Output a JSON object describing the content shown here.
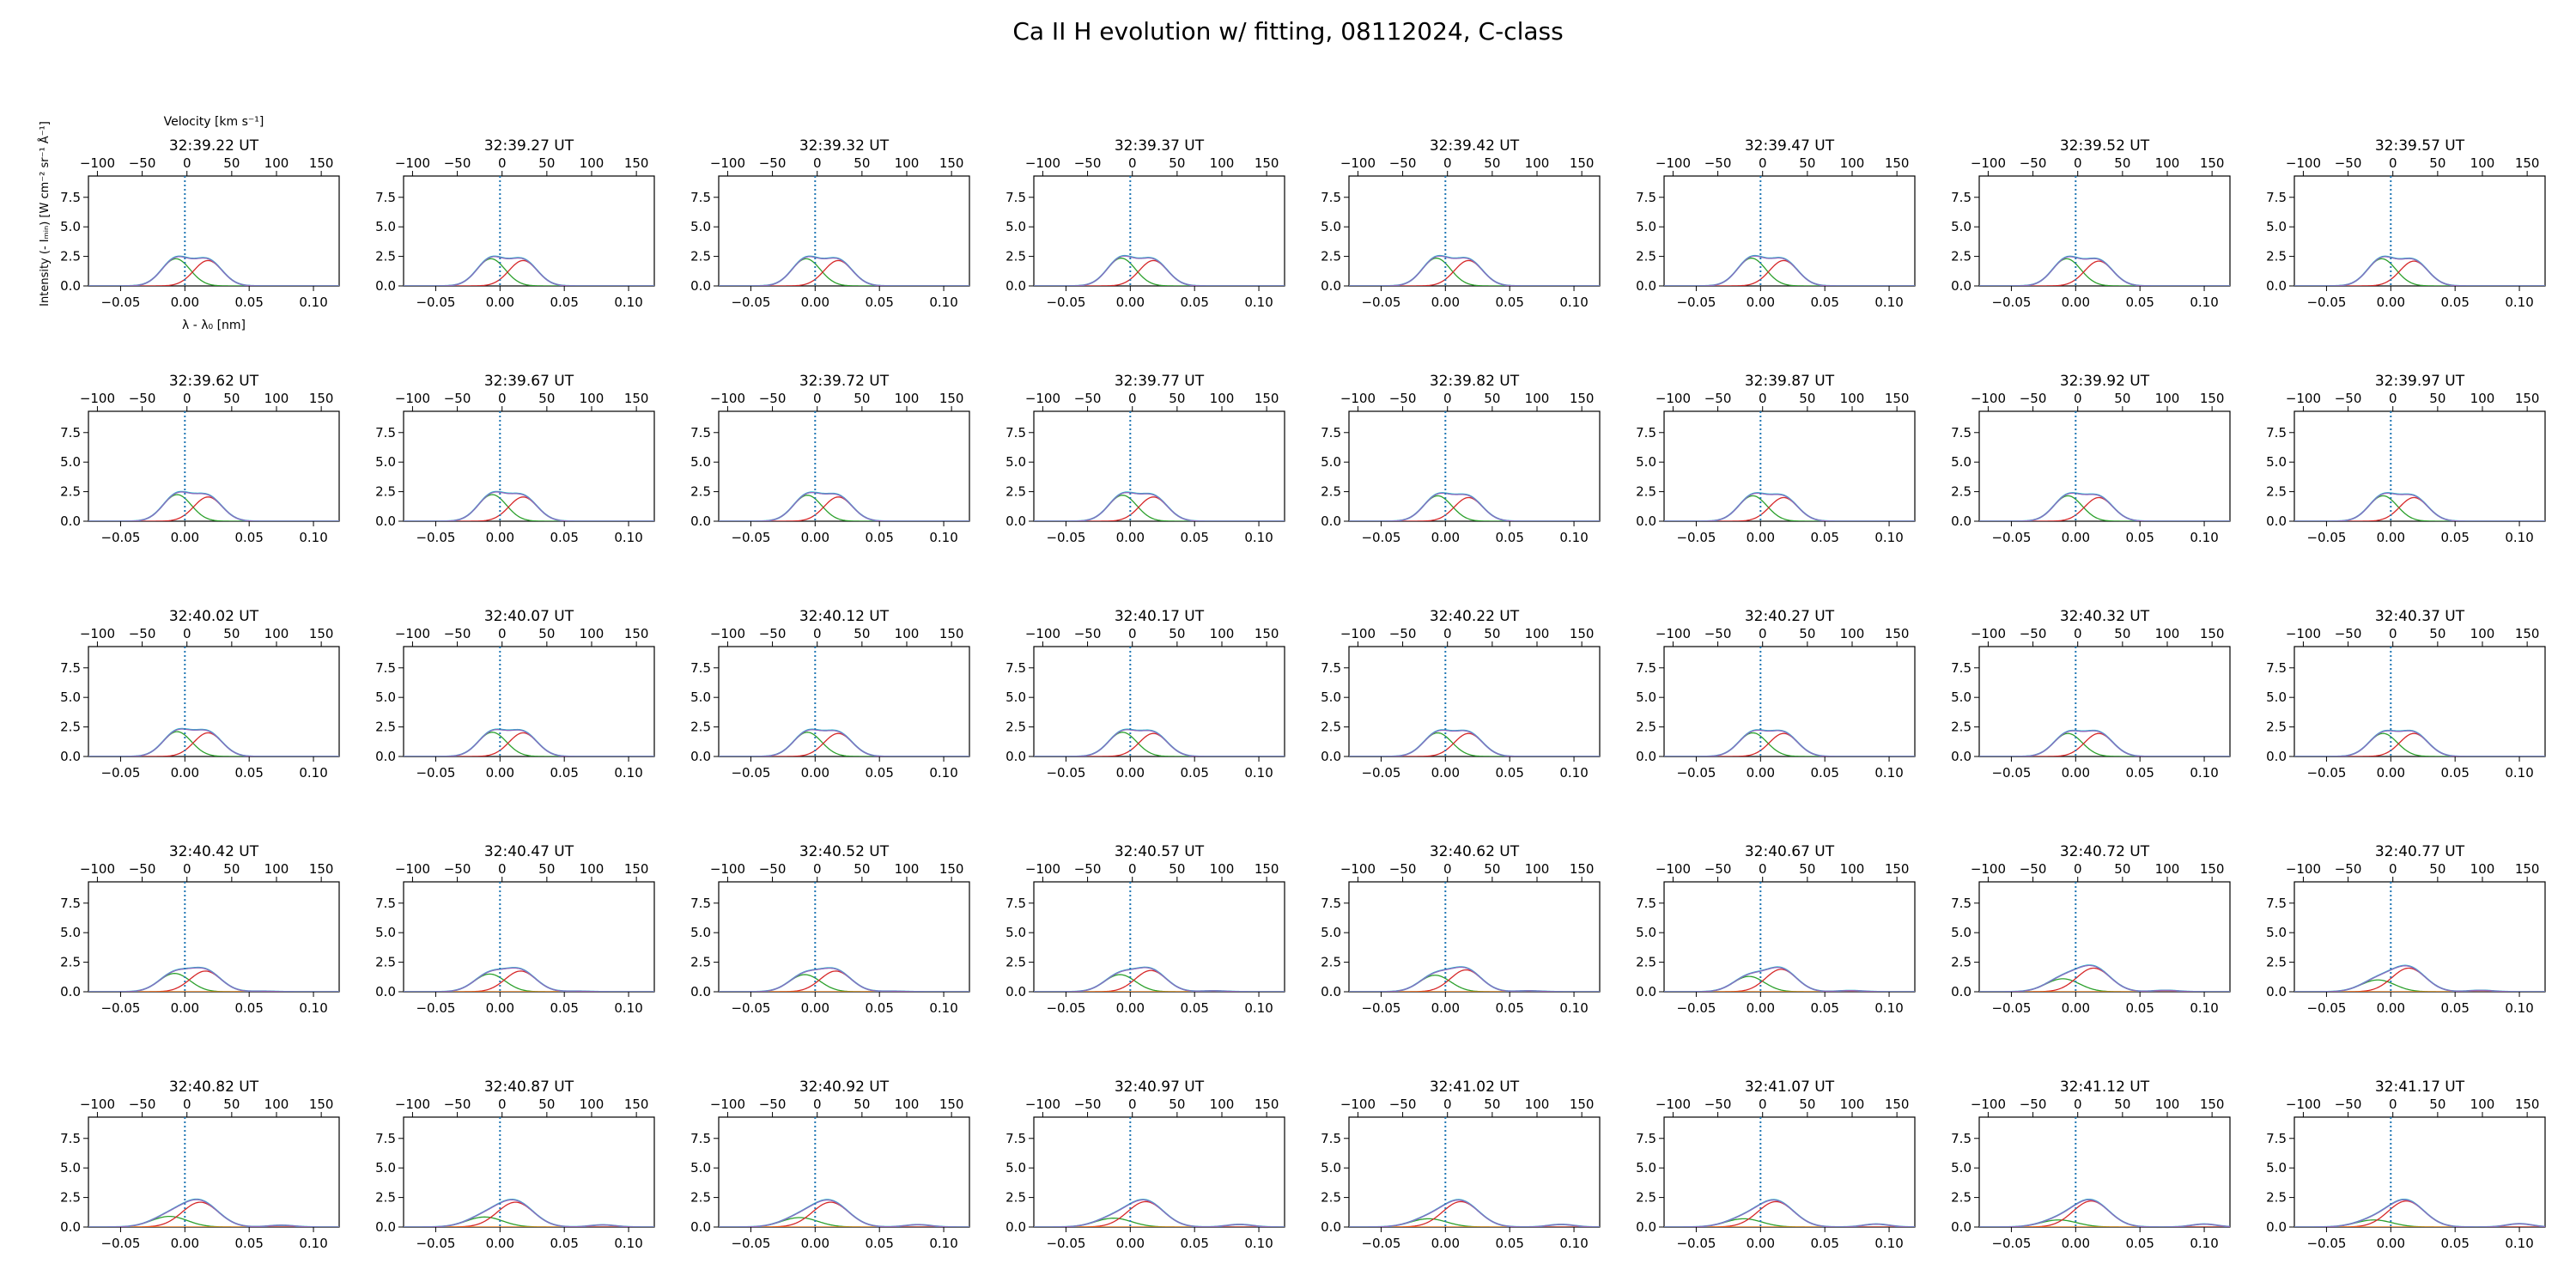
{
  "figure": {
    "suptitle": "Ca II H evolution w/ fitting, 08112024, C-class",
    "top_axis_label": "Velocity [km s⁻¹]",
    "y_axis_label": "Intensity (- Iₘᵢₙ) [W cm⁻² sr⁻¹ Å⁻¹]",
    "x_axis_label": "λ - λ₀ [nm]"
  },
  "chart_data": {
    "type": "line",
    "grid": false,
    "nrows": 5,
    "ncols": 8,
    "xlim": [
      -0.075,
      0.12
    ],
    "ylim": [
      0,
      9.3
    ],
    "top_xlim": [
      -110,
      170
    ],
    "x_ticks": [
      -0.05,
      0.0,
      0.05,
      0.1
    ],
    "x_tick_labels": [
      "−0.05",
      "0.00",
      "0.05",
      "0.10"
    ],
    "y_ticks": [
      0.0,
      2.5,
      5.0,
      7.5
    ],
    "y_tick_labels": [
      "0.0",
      "2.5",
      "5.0",
      "7.5"
    ],
    "top_ticks": [
      -100,
      -50,
      0,
      50,
      100,
      150
    ],
    "top_tick_labels": [
      "−100",
      "−50",
      "0",
      "50",
      "100",
      "150"
    ],
    "reference_line_x": 0.0,
    "panels": [
      {
        "time": "32:39.22 UT",
        "a1": 2.3,
        "c1": -0.007,
        "a2": 2.15,
        "c2": 0.018,
        "w": 0.011,
        "a3": 0.0,
        "c3": 0.06,
        "w3": 0.01
      },
      {
        "time": "32:39.27 UT",
        "a1": 2.3,
        "c1": -0.007,
        "a2": 2.15,
        "c2": 0.018,
        "w": 0.011,
        "a3": 0.0,
        "c3": 0.06,
        "w3": 0.01
      },
      {
        "time": "32:39.32 UT",
        "a1": 2.3,
        "c1": -0.007,
        "a2": 2.15,
        "c2": 0.018,
        "w": 0.011,
        "a3": 0.0,
        "c3": 0.06,
        "w3": 0.01
      },
      {
        "time": "32:39.37 UT",
        "a1": 2.35,
        "c1": -0.007,
        "a2": 2.15,
        "c2": 0.018,
        "w": 0.011,
        "a3": 0.0,
        "c3": 0.06,
        "w3": 0.01
      },
      {
        "time": "32:39.42 UT",
        "a1": 2.35,
        "c1": -0.007,
        "a2": 2.15,
        "c2": 0.018,
        "w": 0.011,
        "a3": 0.0,
        "c3": 0.06,
        "w3": 0.01
      },
      {
        "time": "32:39.47 UT",
        "a1": 2.35,
        "c1": -0.007,
        "a2": 2.15,
        "c2": 0.018,
        "w": 0.011,
        "a3": 0.0,
        "c3": 0.06,
        "w3": 0.01
      },
      {
        "time": "32:39.52 UT",
        "a1": 2.3,
        "c1": -0.007,
        "a2": 2.1,
        "c2": 0.018,
        "w": 0.011,
        "a3": 0.0,
        "c3": 0.06,
        "w3": 0.01
      },
      {
        "time": "32:39.57 UT",
        "a1": 2.3,
        "c1": -0.007,
        "a2": 2.1,
        "c2": 0.018,
        "w": 0.011,
        "a3": 0.0,
        "c3": 0.06,
        "w3": 0.01
      },
      {
        "time": "32:39.62 UT",
        "a1": 2.25,
        "c1": -0.006,
        "a2": 2.05,
        "c2": 0.018,
        "w": 0.011,
        "a3": 0.0,
        "c3": 0.06,
        "w3": 0.01
      },
      {
        "time": "32:39.67 UT",
        "a1": 2.25,
        "c1": -0.006,
        "a2": 2.05,
        "c2": 0.018,
        "w": 0.011,
        "a3": 0.0,
        "c3": 0.06,
        "w3": 0.01
      },
      {
        "time": "32:39.72 UT",
        "a1": 2.2,
        "c1": -0.006,
        "a2": 2.05,
        "c2": 0.018,
        "w": 0.011,
        "a3": 0.0,
        "c3": 0.06,
        "w3": 0.01
      },
      {
        "time": "32:39.77 UT",
        "a1": 2.2,
        "c1": -0.006,
        "a2": 2.05,
        "c2": 0.018,
        "w": 0.011,
        "a3": 0.0,
        "c3": 0.06,
        "w3": 0.01
      },
      {
        "time": "32:39.82 UT",
        "a1": 2.15,
        "c1": -0.006,
        "a2": 2.0,
        "c2": 0.018,
        "w": 0.011,
        "a3": 0.0,
        "c3": 0.06,
        "w3": 0.01
      },
      {
        "time": "32:39.87 UT",
        "a1": 2.15,
        "c1": -0.006,
        "a2": 2.0,
        "c2": 0.018,
        "w": 0.011,
        "a3": 0.0,
        "c3": 0.06,
        "w3": 0.01
      },
      {
        "time": "32:39.92 UT",
        "a1": 2.15,
        "c1": -0.006,
        "a2": 2.0,
        "c2": 0.018,
        "w": 0.011,
        "a3": 0.0,
        "c3": 0.06,
        "w3": 0.01
      },
      {
        "time": "32:39.97 UT",
        "a1": 2.15,
        "c1": -0.006,
        "a2": 2.0,
        "c2": 0.018,
        "w": 0.011,
        "a3": 0.0,
        "c3": 0.06,
        "w3": 0.01
      },
      {
        "time": "32:40.02 UT",
        "a1": 2.1,
        "c1": -0.006,
        "a2": 2.0,
        "c2": 0.018,
        "w": 0.011,
        "a3": 0.0,
        "c3": 0.06,
        "w3": 0.01
      },
      {
        "time": "32:40.07 UT",
        "a1": 2.05,
        "c1": -0.006,
        "a2": 2.0,
        "c2": 0.018,
        "w": 0.011,
        "a3": 0.0,
        "c3": 0.06,
        "w3": 0.01
      },
      {
        "time": "32:40.12 UT",
        "a1": 2.05,
        "c1": -0.006,
        "a2": 1.95,
        "c2": 0.018,
        "w": 0.011,
        "a3": 0.0,
        "c3": 0.06,
        "w3": 0.01
      },
      {
        "time": "32:40.17 UT",
        "a1": 2.05,
        "c1": -0.006,
        "a2": 1.95,
        "c2": 0.018,
        "w": 0.011,
        "a3": 0.0,
        "c3": 0.06,
        "w3": 0.01
      },
      {
        "time": "32:40.22 UT",
        "a1": 2.0,
        "c1": -0.006,
        "a2": 1.95,
        "c2": 0.018,
        "w": 0.011,
        "a3": 0.0,
        "c3": 0.06,
        "w3": 0.01
      },
      {
        "time": "32:40.27 UT",
        "a1": 2.0,
        "c1": -0.006,
        "a2": 1.95,
        "c2": 0.018,
        "w": 0.011,
        "a3": 0.0,
        "c3": 0.06,
        "w3": 0.01
      },
      {
        "time": "32:40.32 UT",
        "a1": 1.95,
        "c1": -0.006,
        "a2": 1.95,
        "c2": 0.018,
        "w": 0.011,
        "a3": 0.0,
        "c3": 0.06,
        "w3": 0.01
      },
      {
        "time": "32:40.37 UT",
        "a1": 1.95,
        "c1": -0.006,
        "a2": 1.95,
        "c2": 0.018,
        "w": 0.011,
        "a3": 0.0,
        "c3": 0.06,
        "w3": 0.01
      },
      {
        "time": "32:40.42 UT",
        "a1": 1.55,
        "c1": -0.008,
        "a2": 1.75,
        "c2": 0.016,
        "w": 0.012,
        "a3": 0.05,
        "c3": 0.06,
        "w3": 0.01
      },
      {
        "time": "32:40.47 UT",
        "a1": 1.5,
        "c1": -0.008,
        "a2": 1.75,
        "c2": 0.016,
        "w": 0.012,
        "a3": 0.05,
        "c3": 0.06,
        "w3": 0.01
      },
      {
        "time": "32:40.52 UT",
        "a1": 1.45,
        "c1": -0.008,
        "a2": 1.75,
        "c2": 0.016,
        "w": 0.012,
        "a3": 0.05,
        "c3": 0.06,
        "w3": 0.01
      },
      {
        "time": "32:40.57 UT",
        "a1": 1.45,
        "c1": -0.008,
        "a2": 1.8,
        "c2": 0.016,
        "w": 0.012,
        "a3": 0.08,
        "c3": 0.065,
        "w3": 0.01
      },
      {
        "time": "32:40.62 UT",
        "a1": 1.4,
        "c1": -0.008,
        "a2": 1.85,
        "c2": 0.016,
        "w": 0.012,
        "a3": 0.08,
        "c3": 0.065,
        "w3": 0.01
      },
      {
        "time": "32:40.67 UT",
        "a1": 1.3,
        "c1": -0.009,
        "a2": 1.9,
        "c2": 0.016,
        "w": 0.012,
        "a3": 0.1,
        "c3": 0.07,
        "w3": 0.01
      },
      {
        "time": "32:40.72 UT",
        "a1": 1.1,
        "c1": -0.01,
        "a2": 2.0,
        "c2": 0.014,
        "w": 0.013,
        "a3": 0.12,
        "c3": 0.07,
        "w3": 0.01
      },
      {
        "time": "32:40.77 UT",
        "a1": 1.0,
        "c1": -0.01,
        "a2": 2.0,
        "c2": 0.014,
        "w": 0.013,
        "a3": 0.12,
        "c3": 0.07,
        "w3": 0.01
      },
      {
        "time": "32:40.82 UT",
        "a1": 0.9,
        "c1": -0.012,
        "a2": 2.1,
        "c2": 0.012,
        "w": 0.014,
        "a3": 0.15,
        "c3": 0.075,
        "w3": 0.01
      },
      {
        "time": "32:40.87 UT",
        "a1": 0.85,
        "c1": -0.012,
        "a2": 2.1,
        "c2": 0.012,
        "w": 0.014,
        "a3": 0.18,
        "c3": 0.08,
        "w3": 0.01
      },
      {
        "time": "32:40.92 UT",
        "a1": 0.8,
        "c1": -0.012,
        "a2": 2.1,
        "c2": 0.012,
        "w": 0.014,
        "a3": 0.2,
        "c3": 0.08,
        "w3": 0.01
      },
      {
        "time": "32:40.97 UT",
        "a1": 0.75,
        "c1": -0.013,
        "a2": 2.15,
        "c2": 0.012,
        "w": 0.014,
        "a3": 0.22,
        "c3": 0.085,
        "w3": 0.01
      },
      {
        "time": "32:41.02 UT",
        "a1": 0.7,
        "c1": -0.013,
        "a2": 2.15,
        "c2": 0.012,
        "w": 0.014,
        "a3": 0.22,
        "c3": 0.09,
        "w3": 0.01
      },
      {
        "time": "32:41.07 UT",
        "a1": 0.7,
        "c1": -0.013,
        "a2": 2.15,
        "c2": 0.012,
        "w": 0.014,
        "a3": 0.25,
        "c3": 0.09,
        "w3": 0.01
      },
      {
        "time": "32:41.12 UT",
        "a1": 0.6,
        "c1": -0.013,
        "a2": 2.2,
        "c2": 0.012,
        "w": 0.014,
        "a3": 0.25,
        "c3": 0.1,
        "w3": 0.01
      },
      {
        "time": "32:41.17 UT",
        "a1": 0.6,
        "c1": -0.013,
        "a2": 2.2,
        "c2": 0.012,
        "w": 0.014,
        "a3": 0.28,
        "c3": 0.1,
        "w3": 0.01
      }
    ]
  },
  "colors": {
    "fit_total": "#17becf",
    "data_curve": "#9467bd",
    "component_blue": "#d62728",
    "component_red": "#2ca02c",
    "extra_component": "#ff7f0e",
    "reference_line": "#1f77b4"
  }
}
